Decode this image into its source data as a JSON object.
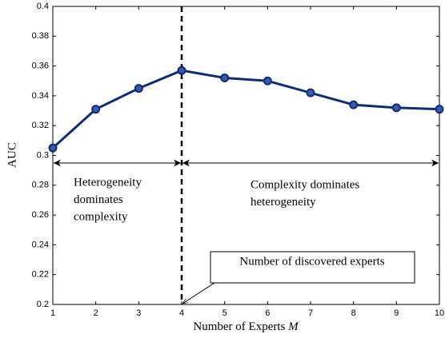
{
  "chart_data": {
    "type": "line",
    "ylabel": "AUC",
    "xlabel": {
      "text": "Number of Experts",
      "variable": "M"
    },
    "x": [
      1,
      2,
      3,
      4,
      5,
      6,
      7,
      8,
      9,
      10
    ],
    "series": [
      {
        "name": "AUC",
        "color": "#0f2c78",
        "values": [
          0.305,
          0.331,
          0.345,
          0.357,
          0.352,
          0.35,
          0.342,
          0.334,
          0.332,
          0.331
        ]
      }
    ],
    "xlim": [
      1,
      10
    ],
    "xticks": [
      1,
      2,
      3,
      4,
      5,
      6,
      7,
      8,
      9,
      10
    ],
    "ylim": [
      0.2,
      0.4
    ],
    "yticks": [
      0.2,
      0.22,
      0.24,
      0.26,
      0.28,
      0.3,
      0.32,
      0.34,
      0.36,
      0.38,
      0.4
    ],
    "grid": false,
    "divider_x": 4,
    "annotations": [
      {
        "lines": [
          "Heterogeneity",
          "dominates",
          "complexity"
        ]
      },
      {
        "lines": [
          "Complexity dominates",
          "heterogeneity"
        ]
      },
      {
        "lines": [
          "Number of discovered experts"
        ]
      }
    ]
  }
}
